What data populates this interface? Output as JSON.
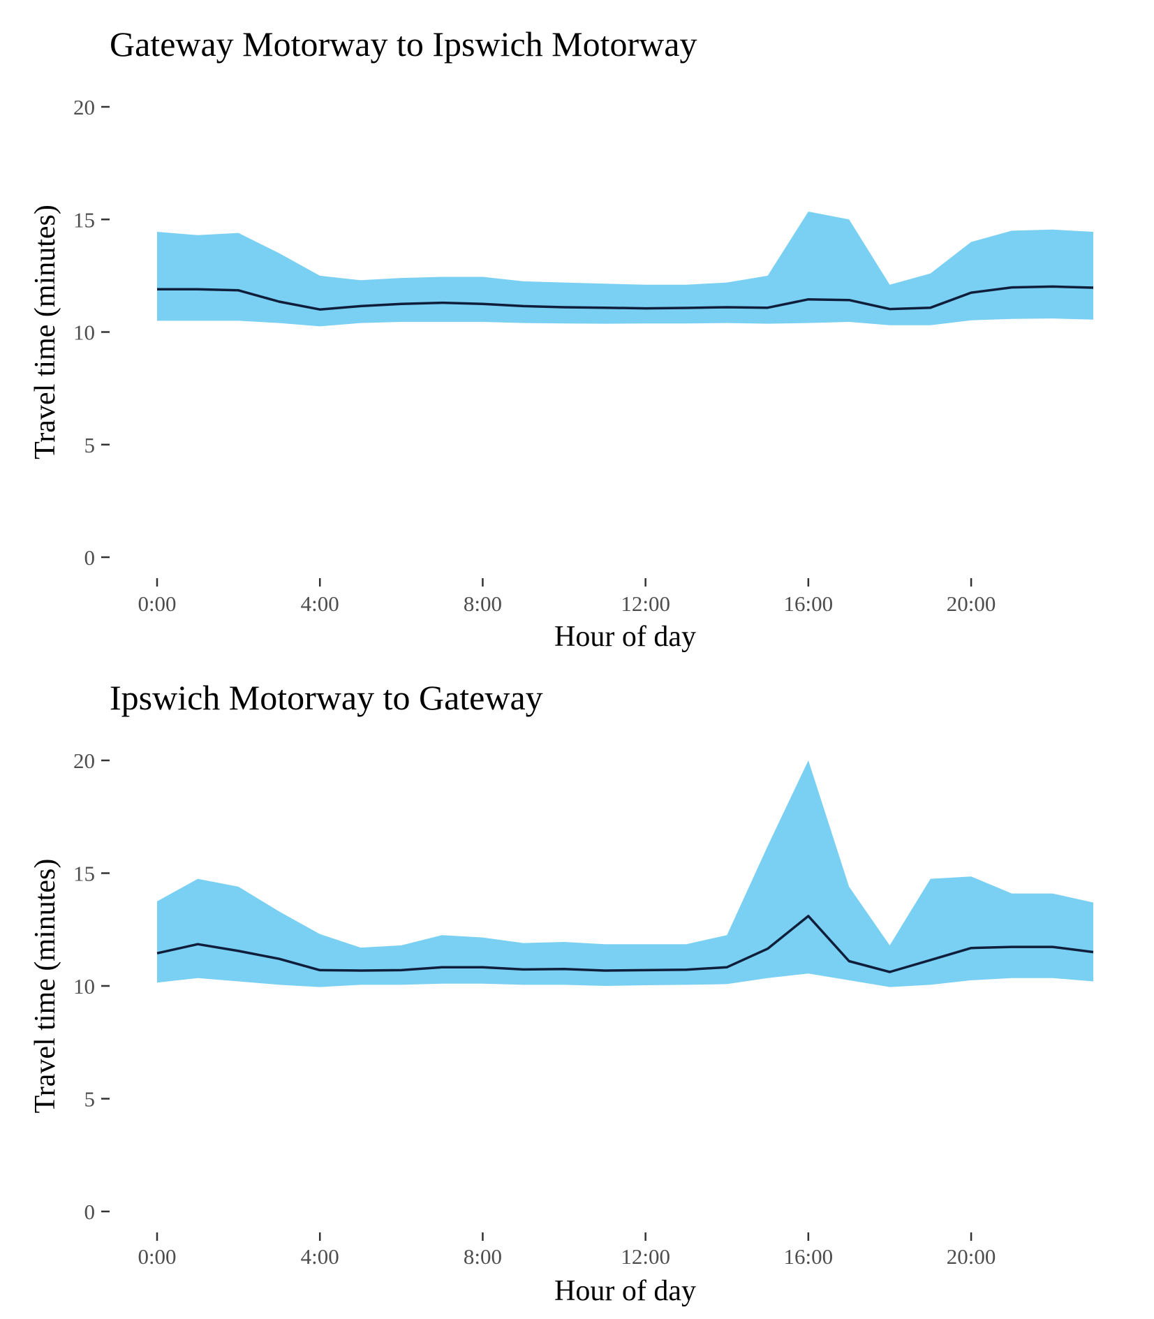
{
  "colors": {
    "band": "#7ad0f3",
    "line": "#0f1e3a",
    "tick": "#333333",
    "tick_label": "#4d4d4d",
    "background": "#ffffff"
  },
  "chart_data": [
    {
      "type": "line",
      "title": "Gateway Motorway to Ipswich Motorway",
      "xlabel": "Hour of day",
      "ylabel": "Travel time (minutes)",
      "xlim": [
        0,
        23
      ],
      "ylim": [
        0,
        20
      ],
      "grid": false,
      "legend": "none",
      "x_ticks": [
        {
          "value": 0,
          "label": "0:00"
        },
        {
          "value": 4,
          "label": "4:00"
        },
        {
          "value": 8,
          "label": "8:00"
        },
        {
          "value": 12,
          "label": "12:00"
        },
        {
          "value": 16,
          "label": "16:00"
        },
        {
          "value": 20,
          "label": "20:00"
        }
      ],
      "y_ticks": [
        0,
        5,
        10,
        15,
        20
      ],
      "x": [
        0,
        1,
        2,
        3,
        4,
        5,
        6,
        7,
        8,
        9,
        10,
        11,
        12,
        13,
        14,
        15,
        16,
        17,
        18,
        19,
        20,
        21,
        22,
        23
      ],
      "series": [
        {
          "kind": "line",
          "values": [
            11.9,
            11.9,
            11.85,
            11.35,
            11.0,
            11.15,
            11.25,
            11.3,
            11.25,
            11.15,
            11.1,
            11.08,
            11.05,
            11.07,
            11.1,
            11.08,
            11.45,
            11.42,
            11.02,
            11.08,
            11.75,
            11.98,
            12.02,
            11.97
          ]
        },
        {
          "kind": "band",
          "upper": [
            14.45,
            14.3,
            14.4,
            13.5,
            12.5,
            12.3,
            12.4,
            12.45,
            12.45,
            12.25,
            12.2,
            12.15,
            12.1,
            12.1,
            12.2,
            12.5,
            15.35,
            15.0,
            12.1,
            12.6,
            14.0,
            14.5,
            14.55,
            14.45
          ],
          "lower": [
            10.5,
            10.5,
            10.5,
            10.4,
            10.25,
            10.4,
            10.45,
            10.45,
            10.45,
            10.4,
            10.38,
            10.37,
            10.38,
            10.38,
            10.4,
            10.37,
            10.4,
            10.45,
            10.3,
            10.3,
            10.52,
            10.58,
            10.6,
            10.55
          ]
        }
      ]
    },
    {
      "type": "line",
      "title": "Ipswich Motorway to Gateway",
      "xlabel": "Hour of day",
      "ylabel": "Travel time (minutes)",
      "xlim": [
        0,
        23
      ],
      "ylim": [
        0,
        20
      ],
      "grid": false,
      "legend": "none",
      "x_ticks": [
        {
          "value": 0,
          "label": "0:00"
        },
        {
          "value": 4,
          "label": "4:00"
        },
        {
          "value": 8,
          "label": "8:00"
        },
        {
          "value": 12,
          "label": "12:00"
        },
        {
          "value": 16,
          "label": "16:00"
        },
        {
          "value": 20,
          "label": "20:00"
        }
      ],
      "y_ticks": [
        0,
        5,
        10,
        15,
        20
      ],
      "x": [
        0,
        1,
        2,
        3,
        4,
        5,
        6,
        7,
        8,
        9,
        10,
        11,
        12,
        13,
        14,
        15,
        16,
        17,
        18,
        19,
        20,
        21,
        22,
        23
      ],
      "series": [
        {
          "kind": "line",
          "values": [
            11.45,
            11.85,
            11.55,
            11.2,
            10.7,
            10.68,
            10.7,
            10.83,
            10.83,
            10.73,
            10.75,
            10.68,
            10.7,
            10.72,
            10.83,
            11.65,
            13.1,
            11.1,
            10.62,
            11.15,
            11.68,
            11.73,
            11.73,
            11.5
          ]
        },
        {
          "kind": "band",
          "upper": [
            13.75,
            14.75,
            14.4,
            13.3,
            12.3,
            11.7,
            11.8,
            12.25,
            12.15,
            11.9,
            11.95,
            11.85,
            11.85,
            11.85,
            12.25,
            16.2,
            20.0,
            14.4,
            11.8,
            14.75,
            14.85,
            14.1,
            14.1,
            13.7
          ],
          "lower": [
            10.15,
            10.35,
            10.2,
            10.05,
            9.95,
            10.05,
            10.05,
            10.1,
            10.1,
            10.05,
            10.05,
            10.0,
            10.03,
            10.05,
            10.08,
            10.35,
            10.55,
            10.25,
            9.95,
            10.05,
            10.25,
            10.35,
            10.35,
            10.2
          ]
        }
      ]
    }
  ]
}
